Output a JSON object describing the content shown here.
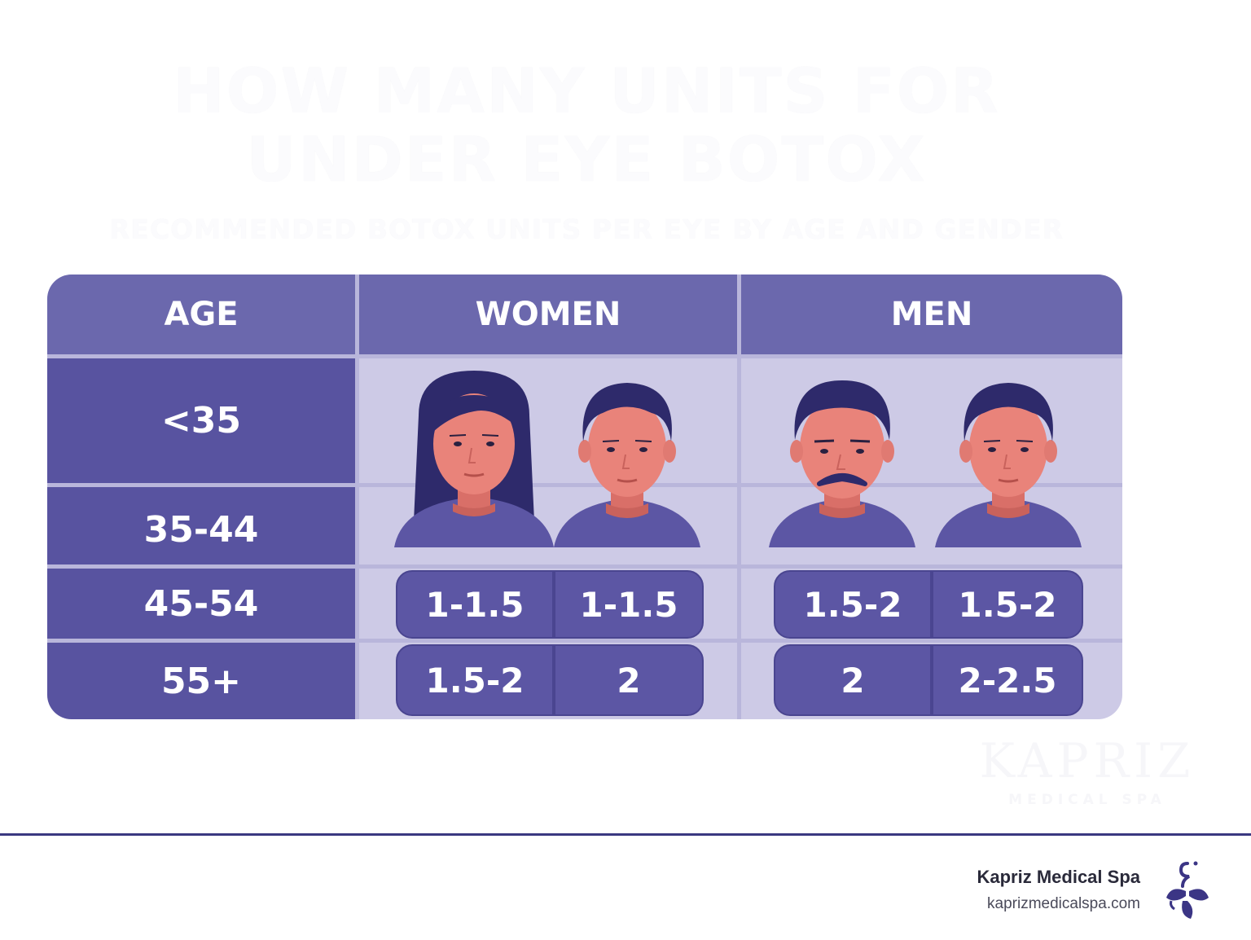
{
  "title": "HOW MANY UNITS FOR UNDER EYE BOTOX",
  "subtitle": "RECOMMENDED BOTOX UNITS PER EYE BY AGE AND GENDER",
  "table": {
    "headers": {
      "age": "AGE",
      "women": "WOMEN",
      "men": "MEN"
    },
    "ages": [
      "<35",
      "35-44",
      "45-54",
      "55+"
    ],
    "women_rows": [
      [
        "1-1.5",
        "1-1.5"
      ],
      [
        "1.5-2",
        "2"
      ]
    ],
    "men_rows": [
      [
        "1.5-2",
        "1.5-2"
      ],
      [
        "2",
        "2-2.5"
      ]
    ]
  },
  "watermark": {
    "name": "KAPRIZ",
    "sub": "MEDICAL SPA"
  },
  "footer": {
    "brand": "Kapriz Medical Spa",
    "url": "kaprizmedicalspa.com"
  },
  "colors": {
    "header": "#6b68ad",
    "age_col": "#5853a0",
    "body": "#cdcae6",
    "pill": "#5c56a4",
    "skin": "#e9837a",
    "hair": "#2e2a6b"
  },
  "icons": [
    "woman-avatar-icon",
    "young-person-avatar-icon",
    "mustache-man-avatar-icon",
    "young-man-avatar-icon",
    "kapriz-logo-icon"
  ]
}
